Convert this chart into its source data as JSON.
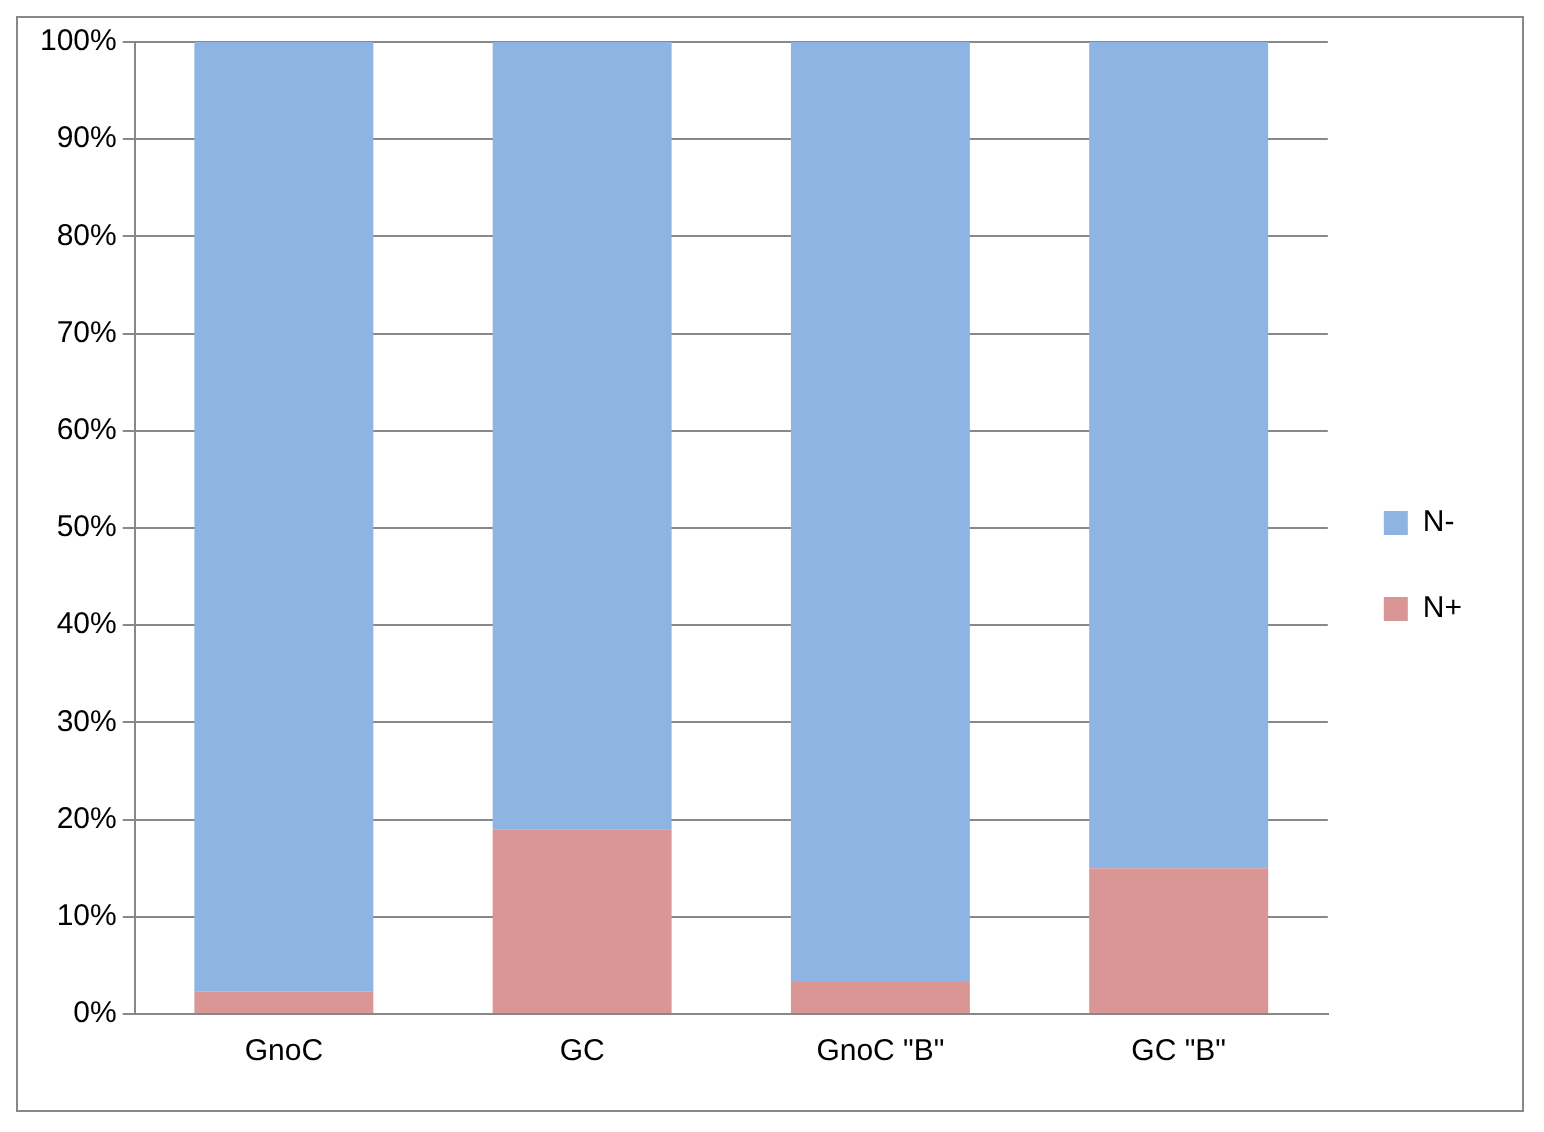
{
  "chart_data": {
    "type": "bar",
    "stacked": true,
    "categories": [
      "GnoC",
      "GC",
      "GnoC \"B\"",
      "GC \"B\""
    ],
    "series": [
      {
        "name": "N+",
        "color": "#d99694",
        "values": [
          2.3,
          19,
          3.3,
          15
        ]
      },
      {
        "name": "N-",
        "color": "#8eb4e3",
        "values": [
          97.7,
          81,
          96.7,
          85
        ]
      }
    ],
    "ylim": [
      0,
      100
    ],
    "yticks": [
      {
        "value": 0,
        "label": "0%"
      },
      {
        "value": 10,
        "label": "10%"
      },
      {
        "value": 20,
        "label": "20%"
      },
      {
        "value": 30,
        "label": "30%"
      },
      {
        "value": 40,
        "label": "40%"
      },
      {
        "value": 50,
        "label": "50%"
      },
      {
        "value": 60,
        "label": "60%"
      },
      {
        "value": 70,
        "label": "70%"
      },
      {
        "value": 80,
        "label": "80%"
      },
      {
        "value": 90,
        "label": "90%"
      },
      {
        "value": 100,
        "label": "100%"
      }
    ],
    "grid": "y",
    "legend": "right"
  }
}
